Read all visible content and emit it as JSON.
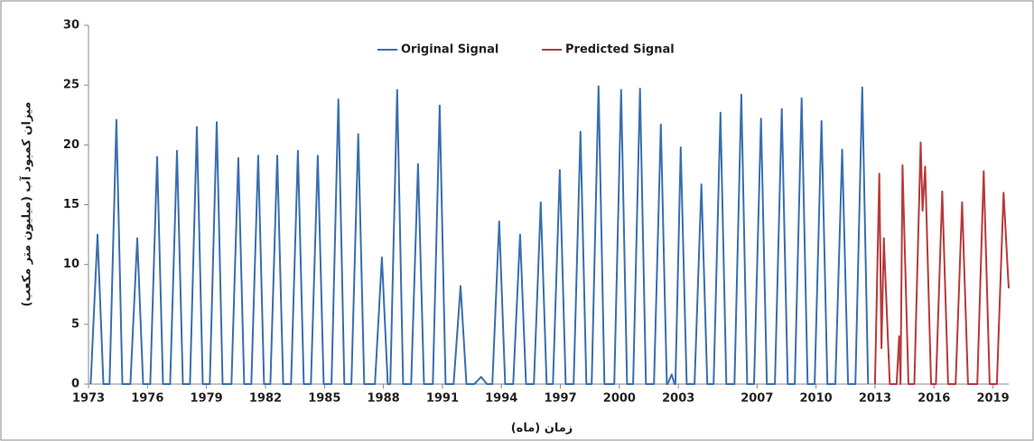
{
  "chart_data": {
    "type": "line",
    "xlabel": "زمان (ماه)",
    "ylabel": "میزان کمبود آب (میلیون متر مکعب)",
    "xlim": [
      1973,
      2019.8
    ],
    "xticks": [
      1973,
      1976,
      1979,
      1982,
      1985,
      1988,
      1991,
      1994,
      1997,
      2000,
      2003,
      2007,
      2010,
      2013,
      2016,
      2019
    ],
    "ylim": [
      0,
      30
    ],
    "yticks": [
      0,
      5,
      10,
      15,
      20,
      25,
      30
    ],
    "legend": "top",
    "series": [
      {
        "name": "Original Signal",
        "color": "#3a6fb0",
        "x": [
          1973.11,
          1973.46,
          1973.76,
          1974.07,
          1974.42,
          1974.72,
          1975.13,
          1975.48,
          1975.78,
          1976.14,
          1976.49,
          1976.79,
          1977.15,
          1977.5,
          1977.8,
          1978.16,
          1978.51,
          1978.81,
          1979.17,
          1979.52,
          1979.82,
          1980.27,
          1980.62,
          1980.92,
          1981.28,
          1981.63,
          1981.93,
          1982.25,
          1982.6,
          1982.9,
          1983.3,
          1983.65,
          1983.95,
          1984.31,
          1984.66,
          1984.96,
          1985.36,
          1985.71,
          1986.01,
          1986.37,
          1986.72,
          1987.02,
          1987.57,
          1987.92,
          1988.22,
          1988.35,
          1988.7,
          1989.0,
          1989.41,
          1989.76,
          1990.06,
          1990.51,
          1990.86,
          1991.16,
          1991.57,
          1991.92,
          1992.22,
          1992.62,
          1992.97,
          1993.27,
          1993.54,
          1993.89,
          1994.19,
          1994.6,
          1994.95,
          1995.25,
          1995.65,
          1996.0,
          1996.3,
          1996.62,
          1996.97,
          1997.27,
          1997.67,
          1998.02,
          1998.32,
          1998.59,
          1998.94,
          1999.24,
          1999.74,
          2000.09,
          2000.39,
          2000.7,
          2001.05,
          2001.35,
          2001.76,
          2002.11,
          2002.41,
          2002.45,
          2002.66,
          2002.8,
          2002.85,
          2003.12,
          2003.42,
          2003.82,
          2004.17,
          2004.47,
          2004.79,
          2005.14,
          2005.44,
          2005.85,
          2006.2,
          2006.5,
          2006.85,
          2007.2,
          2007.5,
          2007.91,
          2008.26,
          2008.56,
          2008.92,
          2009.27,
          2009.57,
          2009.93,
          2010.28,
          2010.58,
          2010.98,
          2011.33,
          2011.63,
          2012.0,
          2012.35,
          2012.65
        ],
        "values": [
          0,
          12.5,
          0,
          0,
          22.1,
          0,
          0,
          12.2,
          0,
          0,
          19,
          0,
          0,
          19.5,
          0,
          0,
          21.5,
          0,
          0,
          21.9,
          0,
          0,
          18.9,
          0,
          0,
          19.1,
          0,
          0,
          19.1,
          0,
          0,
          19.5,
          0,
          0,
          19.1,
          0,
          0,
          23.8,
          0,
          0,
          20.9,
          0,
          0,
          10.6,
          0,
          0,
          24.6,
          0,
          0,
          18.4,
          0,
          0,
          23.3,
          0,
          0,
          8.2,
          0,
          0,
          0.6,
          0,
          0,
          13.6,
          0,
          0,
          12.5,
          0,
          0,
          15.2,
          0,
          0,
          17.9,
          0,
          0,
          21.1,
          0,
          0,
          24.9,
          0,
          0,
          24.6,
          0,
          0,
          24.7,
          0,
          0,
          21.7,
          0,
          0,
          0.8,
          0,
          0,
          19.8,
          0,
          0,
          16.7,
          0,
          0,
          22.7,
          0,
          0,
          24.2,
          0,
          0,
          22.2,
          0,
          0,
          23,
          0,
          0,
          23.9,
          0,
          0,
          22,
          0,
          0,
          19.6,
          0,
          0,
          24.8,
          0
        ]
      },
      {
        "name": "Predicted Signal",
        "color": "#b83a3a",
        "x": [
          2013.0,
          2013.22,
          2013.33,
          2013.45,
          2013.75,
          2014.1,
          2014.23,
          2014.3,
          2014.4,
          2014.7,
          2015.0,
          2015.32,
          2015.42,
          2015.55,
          2015.85,
          2016.1,
          2016.42,
          2016.72,
          2017.1,
          2017.43,
          2017.73,
          2018.2,
          2018.53,
          2018.83,
          2019.2,
          2019.54,
          2019.8
        ],
        "values": [
          0,
          17.6,
          3,
          12.2,
          0,
          0,
          4,
          0,
          18.3,
          0,
          0,
          20.2,
          14.5,
          18.2,
          0,
          0,
          16.1,
          0,
          0,
          15.2,
          0,
          0,
          17.8,
          0,
          0,
          16,
          8
        ]
      }
    ]
  }
}
